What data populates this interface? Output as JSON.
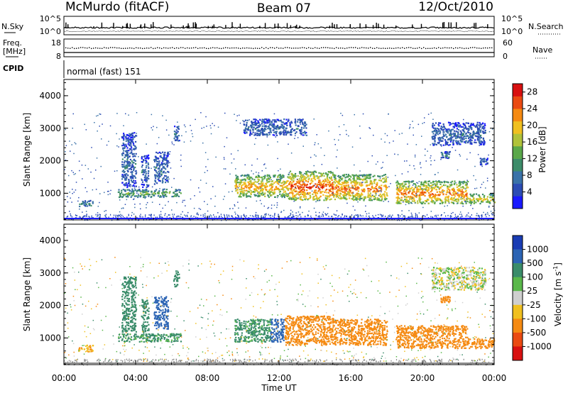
{
  "header": {
    "station": "McMurdo (fitACF)",
    "beam": "Beam 07",
    "date": "12/Oct/2010"
  },
  "strips": {
    "nsky_label": "N.Sky",
    "nsky_ticks": [
      "10^5",
      "10^0"
    ],
    "nsearch_label": "N.Search",
    "nsearch_ticks": [
      "10^5",
      "10^0"
    ],
    "freq_label_1": "Freq.",
    "freq_label_2": "[MHz]",
    "freq_ticks": [
      "18",
      "8"
    ],
    "nave_label": "Nave",
    "nave_ticks": [
      "60",
      "0"
    ],
    "cpid_label": "CPID",
    "cpid_value": "normal (fast) 151"
  },
  "chart_data": [
    {
      "type": "heatmap",
      "title": "",
      "xlabel": "",
      "ylabel": "Slant Range [km]",
      "xlim": [
        0,
        24
      ],
      "ylim": [
        180,
        4500
      ],
      "yticks": [
        "1000",
        "2000",
        "3000",
        "4000"
      ],
      "colorbar": {
        "label": "Power [dB]",
        "ticks": [
          "4",
          "8",
          "12",
          "16",
          "20",
          "24",
          "28"
        ],
        "range": [
          0,
          30
        ],
        "colors": [
          "#1a1aff",
          "#2c4cb4",
          "#3a72a8",
          "#3d8c6a",
          "#5aa84a",
          "#b0c23a",
          "#f0c020",
          "#f58a12",
          "#ea4a12",
          "#d81010"
        ]
      },
      "echo_regions": [
        {
          "t0": 0.8,
          "t1": 1.6,
          "r0": 600,
          "r1": 800,
          "value": 8
        },
        {
          "t0": 3.0,
          "t1": 6.5,
          "r0": 900,
          "r1": 1150,
          "value": 12
        },
        {
          "t0": 3.2,
          "t1": 4.0,
          "r0": 1200,
          "r1": 2900,
          "value": 6
        },
        {
          "t0": 4.3,
          "t1": 4.7,
          "r0": 1200,
          "r1": 2200,
          "value": 6
        },
        {
          "t0": 5.0,
          "t1": 5.8,
          "r0": 1300,
          "r1": 2300,
          "value": 6
        },
        {
          "t0": 6.1,
          "t1": 6.4,
          "r0": 2600,
          "r1": 3100,
          "value": 6
        },
        {
          "t0": 9.5,
          "t1": 12.5,
          "r0": 900,
          "r1": 1600,
          "value": 18
        },
        {
          "t0": 12.5,
          "t1": 15.0,
          "r0": 800,
          "r1": 1700,
          "value": 22
        },
        {
          "t0": 15.0,
          "t1": 18.0,
          "r0": 800,
          "r1": 1600,
          "value": 20
        },
        {
          "t0": 18.5,
          "t1": 22.5,
          "r0": 700,
          "r1": 1400,
          "value": 20
        },
        {
          "t0": 22.5,
          "t1": 24.0,
          "r0": 700,
          "r1": 1000,
          "value": 16
        },
        {
          "t0": 10.0,
          "t1": 13.5,
          "r0": 2800,
          "r1": 3300,
          "value": 6
        },
        {
          "t0": 20.5,
          "t1": 23.5,
          "r0": 2500,
          "r1": 3200,
          "value": 6
        },
        {
          "t0": 21.0,
          "t1": 21.5,
          "r0": 2100,
          "r1": 2300,
          "value": 8
        },
        {
          "t0": 23.2,
          "t1": 23.6,
          "r0": 1900,
          "r1": 2100,
          "value": 6
        }
      ]
    },
    {
      "type": "heatmap",
      "title": "",
      "xlabel": "Time UT",
      "ylabel": "Slant Range [km]",
      "xlim": [
        0,
        24
      ],
      "ylim": [
        180,
        4500
      ],
      "xticks": [
        "00:00",
        "04:00",
        "08:00",
        "12:00",
        "16:00",
        "20:00",
        "00:00"
      ],
      "yticks": [
        "1000",
        "2000",
        "3000",
        "4000"
      ],
      "colorbar": {
        "label": "Velocity [m s^-1]",
        "label_main": "Velocity",
        "label_unit": "[m s",
        "label_exp": "-1",
        "label_close": "]",
        "ticks": [
          "1000",
          "500",
          "100",
          "25",
          "-25",
          "-100",
          "-500",
          "-1000"
        ],
        "colors": [
          "#1a3cb4",
          "#2c64b4",
          "#3a8c6a",
          "#5ab84a",
          "#cfcfcf",
          "#f0c020",
          "#f58a12",
          "#ea4a12",
          "#d81010"
        ]
      },
      "echo_regions": [
        {
          "t0": 0.8,
          "t1": 1.6,
          "r0": 600,
          "r1": 800,
          "value": -100
        },
        {
          "t0": 3.0,
          "t1": 6.5,
          "r0": 900,
          "r1": 1150,
          "value": 150
        },
        {
          "t0": 3.2,
          "t1": 4.0,
          "r0": 1200,
          "r1": 2900,
          "value": 200
        },
        {
          "t0": 4.3,
          "t1": 4.7,
          "r0": 1200,
          "r1": 2200,
          "value": 200
        },
        {
          "t0": 5.0,
          "t1": 5.8,
          "r0": 1300,
          "r1": 2300,
          "value": 600
        },
        {
          "t0": 6.1,
          "t1": 6.4,
          "r0": 2600,
          "r1": 3100,
          "value": 200
        },
        {
          "t0": 9.5,
          "t1": 11.5,
          "r0": 900,
          "r1": 1600,
          "value": 150
        },
        {
          "t0": 11.5,
          "t1": 12.3,
          "r0": 900,
          "r1": 1600,
          "value": 600
        },
        {
          "t0": 12.3,
          "t1": 15.0,
          "r0": 800,
          "r1": 1700,
          "value": -300
        },
        {
          "t0": 15.0,
          "t1": 18.0,
          "r0": 800,
          "r1": 1600,
          "value": -300
        },
        {
          "t0": 18.5,
          "t1": 22.5,
          "r0": 700,
          "r1": 1400,
          "value": -300
        },
        {
          "t0": 22.5,
          "t1": 24.0,
          "r0": 700,
          "r1": 1000,
          "value": -300
        },
        {
          "t0": 20.5,
          "t1": 23.5,
          "r0": 2500,
          "r1": 3200,
          "value": 0
        },
        {
          "t0": 21.0,
          "t1": 21.5,
          "r0": 2100,
          "r1": 2300,
          "value": -300
        }
      ]
    }
  ]
}
